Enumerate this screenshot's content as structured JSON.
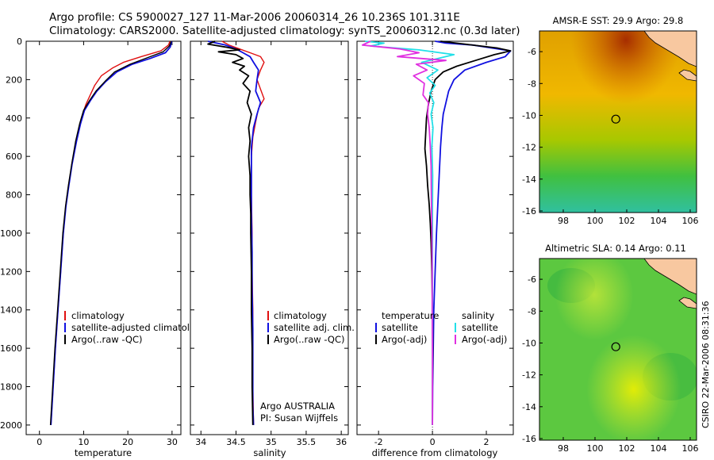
{
  "title_line1": "Argo profile: CS 5900027_127 11-Mar-2006 20060314_26 10.236S 101.311E",
  "title_line2": "Climatology: CARS2000. Satellite-adjusted climatology: synTS_20060312.nc (0.3d later)",
  "footer_vertical": "CSIRO 22-Mar-2006 08:31:36",
  "colors": {
    "red": "#e01010",
    "blue": "#1010e0",
    "black": "#000000",
    "cyan": "#22e0e8",
    "magenta": "#e030e0"
  },
  "chart_data": [
    {
      "type": "line",
      "name": "temperature",
      "xlabel": "temperature",
      "xlim": [
        -3,
        32
      ],
      "ylim": [
        0,
        2050
      ],
      "xticks": [
        0,
        10,
        20,
        30
      ],
      "yticks": [
        0,
        200,
        400,
        600,
        800,
        1000,
        1200,
        1400,
        1600,
        1800,
        2000
      ],
      "legend": [
        "climatology",
        "satellite-adjusted climatology",
        "Argo(..raw -QC)"
      ],
      "series": [
        {
          "name": "climatology",
          "color": "red",
          "width": 1.4,
          "points": [
            [
              29.5,
              0
            ],
            [
              29.2,
              20
            ],
            [
              27.5,
              50
            ],
            [
              23,
              80
            ],
            [
              19,
              110
            ],
            [
              16.5,
              140
            ],
            [
              14,
              180
            ],
            [
              12.5,
              230
            ],
            [
              11.5,
              280
            ],
            [
              10.5,
              330
            ],
            [
              9.5,
              400
            ],
            [
              8.5,
              500
            ],
            [
              7.5,
              620
            ],
            [
              6.6,
              750
            ],
            [
              6,
              850
            ],
            [
              5.4,
              1000
            ],
            [
              4.8,
              1200
            ],
            [
              4.2,
              1400
            ],
            [
              3.6,
              1600
            ],
            [
              3.1,
              1800
            ],
            [
              2.6,
              2000
            ]
          ]
        },
        {
          "name": "satellite-adjusted climatology",
          "color": "blue",
          "width": 1.8,
          "points": [
            [
              29.9,
              0
            ],
            [
              29.6,
              30
            ],
            [
              28.5,
              60
            ],
            [
              25,
              90
            ],
            [
              21,
              120
            ],
            [
              17.5,
              160
            ],
            [
              15,
              210
            ],
            [
              13,
              260
            ],
            [
              11.5,
              310
            ],
            [
              10.2,
              360
            ],
            [
              9.3,
              430
            ],
            [
              8.4,
              520
            ],
            [
              7.4,
              640
            ],
            [
              6.6,
              760
            ],
            [
              6,
              860
            ],
            [
              5.4,
              1000
            ],
            [
              4.8,
              1200
            ],
            [
              4.2,
              1400
            ],
            [
              3.6,
              1600
            ],
            [
              3.1,
              1800
            ],
            [
              2.6,
              2000
            ]
          ]
        },
        {
          "name": "Argo(..raw -QC)",
          "color": "black",
          "width": 1.4,
          "points": [
            [
              29.8,
              0
            ],
            [
              29.4,
              25
            ],
            [
              28,
              55
            ],
            [
              24.5,
              85
            ],
            [
              20.5,
              120
            ],
            [
              17,
              160
            ],
            [
              14.8,
              210
            ],
            [
              12.8,
              260
            ],
            [
              11.3,
              310
            ],
            [
              10,
              360
            ],
            [
              9.1,
              430
            ],
            [
              8.2,
              520
            ],
            [
              7.3,
              640
            ],
            [
              6.5,
              760
            ],
            [
              5.9,
              860
            ],
            [
              5.3,
              1000
            ],
            [
              4.7,
              1200
            ],
            [
              4.1,
              1400
            ],
            [
              3.5,
              1600
            ],
            [
              3,
              1800
            ],
            [
              2.5,
              2000
            ]
          ]
        }
      ]
    },
    {
      "type": "line",
      "name": "salinity",
      "xlabel": "salinity",
      "xlim": [
        33.85,
        36.1
      ],
      "ylim": [
        0,
        2050
      ],
      "xticks": [
        34,
        34.5,
        35,
        35.5,
        36
      ],
      "legend": [
        "climatology",
        "satellite adj. clim.",
        "Argo(..raw -QC)"
      ],
      "annotation_lines": [
        "Argo AUSTRALIA",
        "PI: Susan Wijffels"
      ],
      "series": [
        {
          "name": "climatology",
          "color": "red",
          "width": 1.4,
          "points": [
            [
              34.3,
              0
            ],
            [
              34.4,
              20
            ],
            [
              34.55,
              40
            ],
            [
              34.7,
              60
            ],
            [
              34.85,
              80
            ],
            [
              34.9,
              110
            ],
            [
              34.85,
              150
            ],
            [
              34.8,
              200
            ],
            [
              34.85,
              250
            ],
            [
              34.9,
              300
            ],
            [
              34.82,
              350
            ],
            [
              34.78,
              420
            ],
            [
              34.74,
              500
            ],
            [
              34.72,
              600
            ],
            [
              34.72,
              800
            ],
            [
              34.73,
              1000
            ],
            [
              34.73,
              1200
            ],
            [
              34.74,
              1400
            ],
            [
              34.74,
              1600
            ],
            [
              34.74,
              1800
            ],
            [
              34.75,
              2000
            ]
          ]
        },
        {
          "name": "satellite adj. clim.",
          "color": "blue",
          "width": 1.8,
          "points": [
            [
              34.1,
              0
            ],
            [
              34.35,
              20
            ],
            [
              34.5,
              40
            ],
            [
              34.6,
              60
            ],
            [
              34.7,
              80
            ],
            [
              34.75,
              110
            ],
            [
              34.82,
              150
            ],
            [
              34.8,
              200
            ],
            [
              34.78,
              260
            ],
            [
              34.85,
              320
            ],
            [
              34.8,
              380
            ],
            [
              34.75,
              450
            ],
            [
              34.72,
              550
            ],
            [
              34.72,
              700
            ],
            [
              34.72,
              900
            ],
            [
              34.73,
              1100
            ],
            [
              34.73,
              1300
            ],
            [
              34.74,
              1500
            ],
            [
              34.74,
              1700
            ],
            [
              34.74,
              1900
            ],
            [
              34.75,
              2000
            ]
          ]
        },
        {
          "name": "Argo(..raw -QC)",
          "color": "black",
          "width": 1.8,
          "points": [
            [
              34.2,
              0
            ],
            [
              34.1,
              15
            ],
            [
              34.35,
              30
            ],
            [
              34.55,
              45
            ],
            [
              34.25,
              55
            ],
            [
              34.5,
              70
            ],
            [
              34.6,
              90
            ],
            [
              34.45,
              110
            ],
            [
              34.62,
              130
            ],
            [
              34.55,
              150
            ],
            [
              34.68,
              180
            ],
            [
              34.6,
              220
            ],
            [
              34.7,
              260
            ],
            [
              34.66,
              320
            ],
            [
              34.72,
              380
            ],
            [
              34.68,
              450
            ],
            [
              34.7,
              520
            ],
            [
              34.68,
              600
            ],
            [
              34.7,
              700
            ],
            [
              34.7,
              800
            ],
            [
              34.71,
              900
            ],
            [
              34.71,
              1000
            ],
            [
              34.72,
              1200
            ],
            [
              34.72,
              1400
            ],
            [
              34.73,
              1600
            ],
            [
              34.73,
              1800
            ],
            [
              34.74,
              2000
            ]
          ]
        }
      ]
    },
    {
      "type": "line",
      "name": "difference",
      "xlabel": "difference from climatology",
      "xlim": [
        -2.8,
        3
      ],
      "ylim": [
        0,
        2050
      ],
      "xticks": [
        -2,
        0,
        2
      ],
      "legend_left_title": "temperature",
      "legend_left": [
        "satellite",
        "Argo(-adj)"
      ],
      "legend_right_title": "salinity",
      "legend_right": [
        "satellite",
        "Argo(-adj)"
      ],
      "series": [
        {
          "name": "temperature satellite",
          "color": "blue",
          "width": 1.8,
          "points": [
            [
              0.1,
              0
            ],
            [
              0.5,
              10
            ],
            [
              1.5,
              20
            ],
            [
              2.9,
              50
            ],
            [
              2.7,
              80
            ],
            [
              2,
              110
            ],
            [
              1.2,
              150
            ],
            [
              0.8,
              200
            ],
            [
              0.6,
              260
            ],
            [
              0.5,
              320
            ],
            [
              0.4,
              380
            ],
            [
              0.35,
              450
            ],
            [
              0.3,
              550
            ],
            [
              0.25,
              700
            ],
            [
              0.2,
              850
            ],
            [
              0.15,
              1000
            ],
            [
              0.1,
              1200
            ],
            [
              0.05,
              1400
            ],
            [
              0.03,
              1600
            ],
            [
              0.01,
              1800
            ],
            [
              0,
              2000
            ]
          ]
        },
        {
          "name": "temperature Argo(-adj)",
          "color": "black",
          "width": 1.8,
          "points": [
            [
              0.3,
              0
            ],
            [
              1.2,
              15
            ],
            [
              2.4,
              35
            ],
            [
              2.9,
              50
            ],
            [
              2.3,
              70
            ],
            [
              1.6,
              100
            ],
            [
              0.9,
              130
            ],
            [
              0.4,
              160
            ],
            [
              0.1,
              200
            ],
            [
              -0.05,
              260
            ],
            [
              -0.15,
              330
            ],
            [
              -0.22,
              400
            ],
            [
              -0.25,
              480
            ],
            [
              -0.28,
              560
            ],
            [
              -0.22,
              650
            ],
            [
              -0.18,
              750
            ],
            [
              -0.12,
              850
            ],
            [
              -0.08,
              950
            ],
            [
              -0.05,
              1050
            ],
            [
              -0.02,
              1200
            ],
            [
              0,
              1400
            ],
            [
              0.01,
              1600
            ],
            [
              0,
              1800
            ],
            [
              0,
              2000
            ]
          ]
        },
        {
          "name": "salinity satellite",
          "color": "cyan",
          "width": 1.8,
          "points": [
            [
              -2.5,
              0
            ],
            [
              -1.8,
              10
            ],
            [
              -2.3,
              25
            ],
            [
              -0.5,
              45
            ],
            [
              0.8,
              70
            ],
            [
              -0.4,
              110
            ],
            [
              0.2,
              150
            ],
            [
              -0.2,
              190
            ],
            [
              0.1,
              230
            ],
            [
              -0.1,
              270
            ],
            [
              0.05,
              320
            ],
            [
              -0.05,
              380
            ],
            [
              0.02,
              450
            ],
            [
              -0.02,
              550
            ],
            [
              0.01,
              700
            ],
            [
              0,
              900
            ],
            [
              0,
              1100
            ],
            [
              0,
              1300
            ],
            [
              0,
              1500
            ],
            [
              0,
              1700
            ],
            [
              0,
              1900
            ],
            [
              0,
              2000
            ]
          ]
        },
        {
          "name": "salinity Argo(-adj)",
          "color": "magenta",
          "width": 1.8,
          "points": [
            [
              -2.3,
              0
            ],
            [
              -2.6,
              20
            ],
            [
              -1.2,
              40
            ],
            [
              -0.5,
              60
            ],
            [
              -1.3,
              80
            ],
            [
              0.5,
              100
            ],
            [
              -0.6,
              120
            ],
            [
              -0.2,
              150
            ],
            [
              -0.7,
              180
            ],
            [
              -0.3,
              220
            ],
            [
              -0.35,
              280
            ],
            [
              -0.15,
              320
            ],
            [
              -0.18,
              380
            ],
            [
              -0.12,
              450
            ],
            [
              -0.08,
              550
            ],
            [
              -0.05,
              650
            ],
            [
              -0.04,
              800
            ],
            [
              -0.02,
              1000
            ],
            [
              -0.01,
              1200
            ],
            [
              -0.01,
              1400
            ],
            [
              0,
              1600
            ],
            [
              0,
              1800
            ],
            [
              0,
              2000
            ]
          ]
        }
      ]
    },
    {
      "type": "heatmap",
      "name": "sst-map",
      "title": "AMSR-E SST: 29.9 Argo: 29.8",
      "xlim": [
        96.5,
        106.4
      ],
      "ylim": [
        -16.1,
        -4.7
      ],
      "xticks": [
        98,
        100,
        102,
        104,
        106
      ],
      "yticks": [
        -6,
        -8,
        -10,
        -12,
        -14,
        -16
      ],
      "argo_position": [
        101.311,
        -10.236
      ]
    },
    {
      "type": "heatmap",
      "name": "sla-map",
      "title": "Altimetric SLA: 0.14 Argo: 0.11",
      "xlim": [
        96.5,
        106.4
      ],
      "ylim": [
        -16.1,
        -4.7
      ],
      "xticks": [
        98,
        100,
        102,
        104,
        106
      ],
      "yticks": [
        -6,
        -8,
        -10,
        -12,
        -14,
        -16
      ],
      "argo_position": [
        101.311,
        -10.236
      ]
    }
  ]
}
